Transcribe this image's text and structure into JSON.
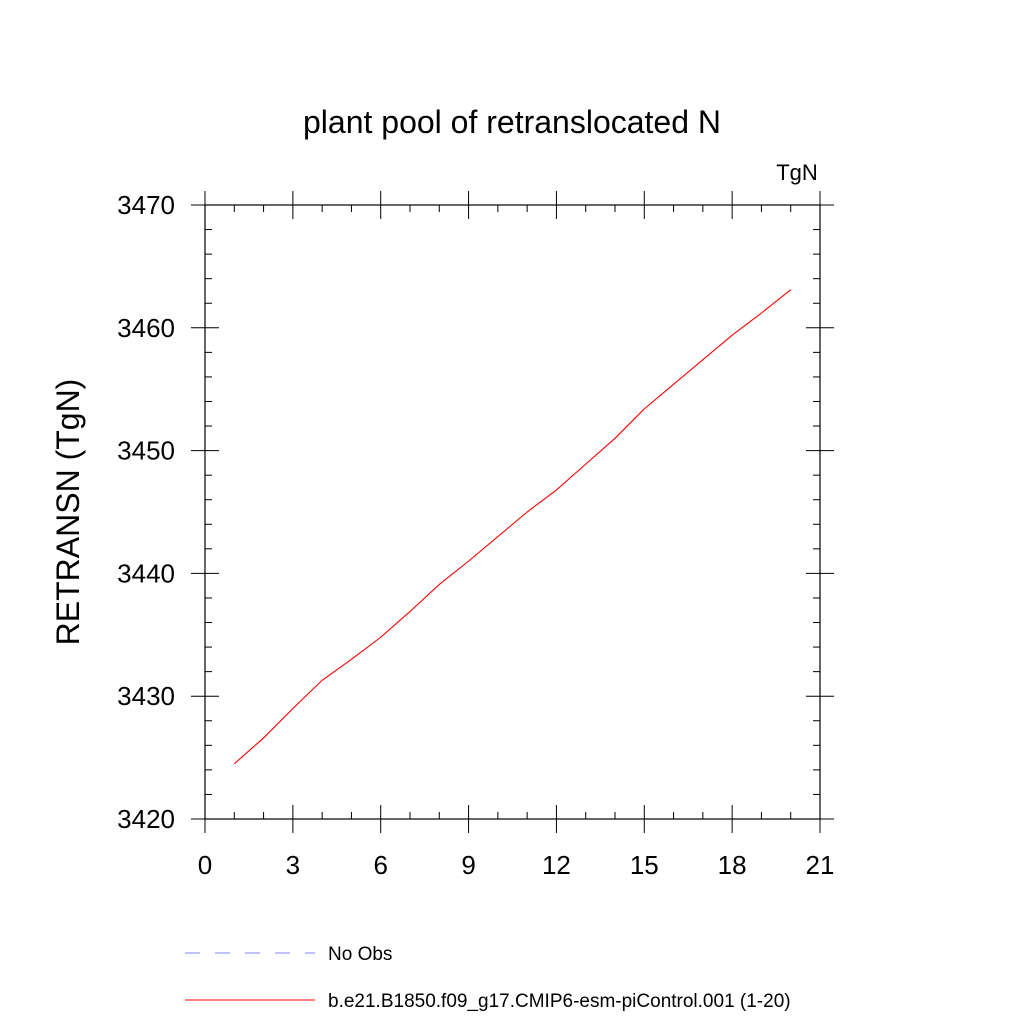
{
  "chart_data": {
    "type": "line",
    "title": "plant pool of retranslocated N",
    "units_label": "TgN",
    "ylabel": "RETRANSN  (TgN)",
    "xlabel": "",
    "xlim": [
      0,
      21
    ],
    "ylim": [
      3420,
      3470
    ],
    "x_ticks": [
      0,
      3,
      6,
      9,
      12,
      15,
      18,
      21
    ],
    "y_ticks": [
      3420,
      3430,
      3440,
      3450,
      3460,
      3470
    ],
    "x_minor_step": 1,
    "y_minor_step": 2,
    "grid": false,
    "legend_position": "bottom",
    "series": [
      {
        "name": "b.e21.B1850.f09_g17.CMIP6-esm-piControl.001 (1-20)",
        "color": "#ff0000",
        "dash": "solid",
        "x": [
          1,
          2,
          3,
          4,
          5,
          6,
          7,
          8,
          9,
          10,
          11,
          12,
          13,
          14,
          15,
          16,
          17,
          18,
          19,
          20
        ],
        "values": [
          3424.5,
          3426.6,
          3429.0,
          3431.3,
          3433.0,
          3434.8,
          3436.9,
          3439.1,
          3441.0,
          3443.0,
          3445.0,
          3446.8,
          3448.9,
          3451.0,
          3453.4,
          3455.4,
          3457.4,
          3459.4,
          3461.2,
          3463.1
        ]
      }
    ],
    "legend": [
      {
        "label": "No Obs",
        "color": "#8080ff",
        "dash": "dashed"
      },
      {
        "label": "b.e21.B1850.f09_g17.CMIP6-esm-piControl.001 (1-20)",
        "color": "#ff0000",
        "dash": "solid"
      }
    ]
  }
}
